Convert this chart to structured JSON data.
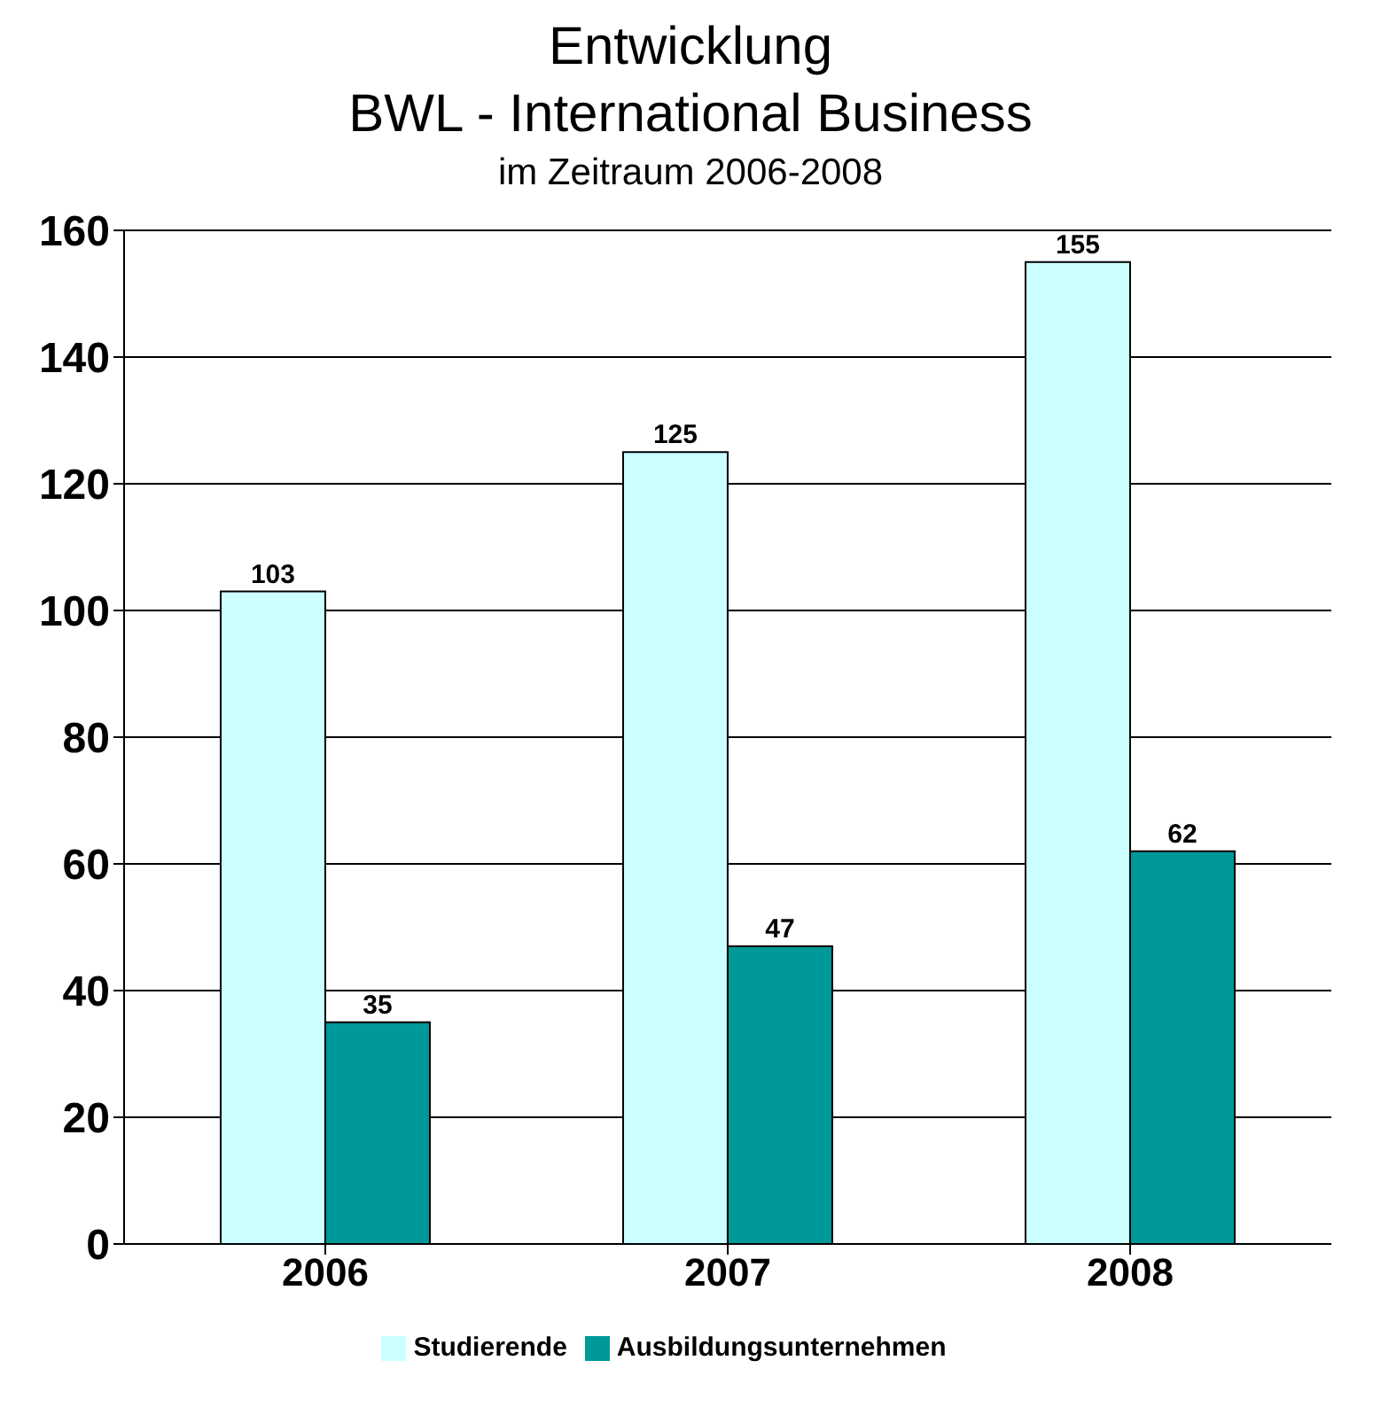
{
  "chart_data": {
    "type": "bar",
    "title": "Entwicklung\nBWL - International Business",
    "subtitle": "im Zeitraum 2006-2008",
    "categories": [
      "2006",
      "2007",
      "2008"
    ],
    "series": [
      {
        "name": "Studierende",
        "color": "#ccffff",
        "values": [
          103,
          125,
          155
        ]
      },
      {
        "name": "Ausbildungsunternehmen",
        "color": "#009999",
        "values": [
          35,
          47,
          62
        ]
      }
    ],
    "ylim": [
      0,
      160
    ],
    "yticks": [
      0,
      20,
      40,
      60,
      80,
      100,
      120,
      140,
      160
    ],
    "grid": "y",
    "legend": "bottom",
    "data_labels": true
  }
}
